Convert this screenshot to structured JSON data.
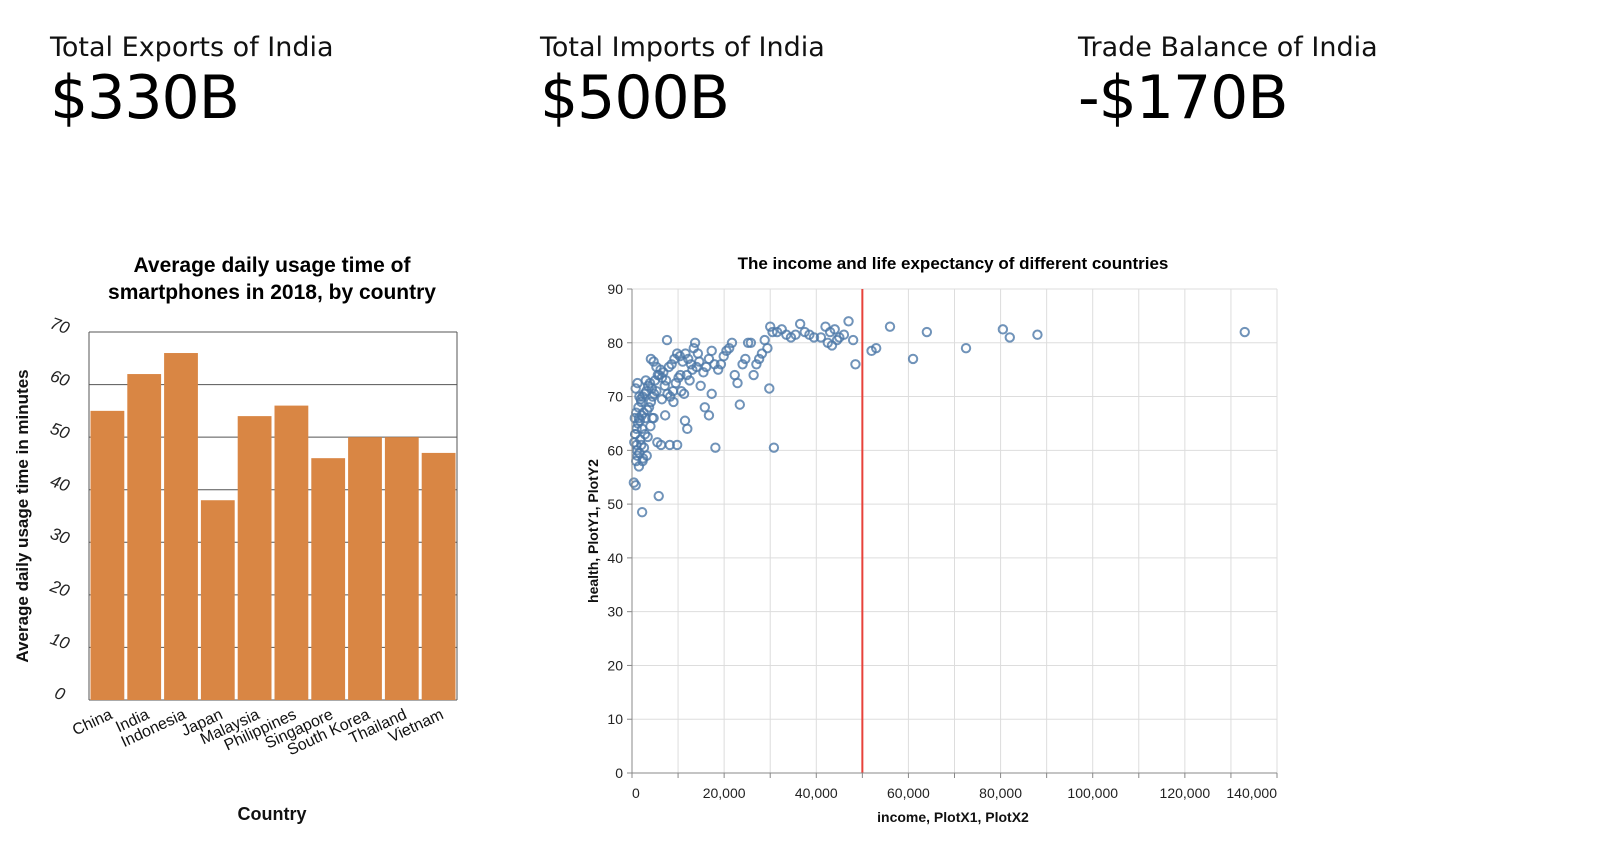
{
  "kpis": [
    {
      "label": "Total Exports of India",
      "value": "$330B"
    },
    {
      "label": "Total Imports of India",
      "value": "$500B"
    },
    {
      "label": "Trade Balance of India",
      "value": "-$170B"
    }
  ],
  "colors": {
    "bar": "#d98644",
    "point": "#4c78a8",
    "rule": "#e8423a"
  },
  "chart_data": [
    {
      "type": "bar",
      "title": [
        "Average daily usage time of",
        "smartphones in 2018, by country"
      ],
      "xlabel": "Country",
      "ylabel": "Average daily usage time in minutes",
      "categories": [
        "China",
        "India",
        "Indonesia",
        "Japan",
        "Malaysia",
        "Philippines",
        "Singapore",
        "South Korea",
        "Thailand",
        "Vietnam"
      ],
      "values": [
        55,
        62,
        66,
        38,
        54,
        56,
        46,
        50,
        50,
        47
      ],
      "ylim": [
        0,
        70
      ],
      "yticks": [
        "0",
        "10",
        "20",
        "30",
        "40",
        "50",
        "60",
        "70"
      ],
      "grid": true
    },
    {
      "type": "scatter",
      "title": "The income and life expectancy of different countries",
      "xlabel": "income, PlotX1, PlotX2",
      "ylabel": "health, PlotY1, PlotY2",
      "xlim": [
        0,
        140000
      ],
      "ylim": [
        0,
        90
      ],
      "xticks": [
        "0",
        "20,000",
        "40,000",
        "60,000",
        "80,000",
        "100,000",
        "120,000",
        "140,000"
      ],
      "yticks": [
        "0",
        "10",
        "20",
        "30",
        "40",
        "50",
        "60",
        "70",
        "80",
        "90"
      ],
      "rule_x": 50000,
      "grid": true,
      "points": [
        [
          400,
          54
        ],
        [
          800,
          53.5
        ],
        [
          1200,
          59
        ],
        [
          1600,
          59.5
        ],
        [
          2000,
          61
        ],
        [
          2400,
          58.5
        ],
        [
          1500,
          57
        ],
        [
          900,
          58
        ],
        [
          1100,
          60
        ],
        [
          1800,
          62
        ],
        [
          2600,
          60.5
        ],
        [
          3200,
          59
        ],
        [
          500,
          61.5
        ],
        [
          700,
          63
        ],
        [
          1000,
          64
        ],
        [
          1300,
          65
        ],
        [
          1700,
          65.5
        ],
        [
          2100,
          66.5
        ],
        [
          2500,
          67
        ],
        [
          2900,
          66
        ],
        [
          3300,
          67.5
        ],
        [
          3700,
          68
        ],
        [
          4100,
          69
        ],
        [
          4500,
          70
        ],
        [
          600,
          66
        ],
        [
          900,
          67
        ],
        [
          1400,
          68
        ],
        [
          1900,
          69.5
        ],
        [
          2300,
          70
        ],
        [
          2700,
          70.5
        ],
        [
          3100,
          71
        ],
        [
          3500,
          72
        ],
        [
          3900,
          72.5
        ],
        [
          4300,
          71.5
        ],
        [
          4800,
          70.5
        ],
        [
          5300,
          71
        ],
        [
          800,
          71.5
        ],
        [
          1200,
          72.5
        ],
        [
          1600,
          70
        ],
        [
          2200,
          64
        ],
        [
          2800,
          63
        ],
        [
          3400,
          62.5
        ],
        [
          4000,
          64.5
        ],
        [
          4700,
          66
        ],
        [
          5500,
          61.5
        ],
        [
          6300,
          61
        ],
        [
          7200,
          66.5
        ],
        [
          8200,
          61
        ],
        [
          2200,
          48.5
        ],
        [
          5800,
          51.5
        ],
        [
          9800,
          61
        ],
        [
          4400,
          66
        ],
        [
          5000,
          73
        ],
        [
          5600,
          74
        ],
        [
          6200,
          75
        ],
        [
          6800,
          74.5
        ],
        [
          7400,
          73
        ],
        [
          8000,
          75.5
        ],
        [
          8600,
          76
        ],
        [
          9200,
          77
        ],
        [
          9800,
          78
        ],
        [
          10400,
          77.5
        ],
        [
          11000,
          76.5
        ],
        [
          11600,
          78
        ],
        [
          12200,
          77
        ],
        [
          12800,
          76
        ],
        [
          13400,
          79
        ],
        [
          14000,
          75.5
        ],
        [
          14600,
          76.5
        ],
        [
          4100,
          77
        ],
        [
          4700,
          76.5
        ],
        [
          5300,
          75.5
        ],
        [
          5900,
          74
        ],
        [
          6500,
          73.5
        ],
        [
          7100,
          72
        ],
        [
          7700,
          70.5
        ],
        [
          8300,
          70
        ],
        [
          8900,
          71
        ],
        [
          9500,
          72.5
        ],
        [
          10100,
          73.5
        ],
        [
          10700,
          71
        ],
        [
          11300,
          70.5
        ],
        [
          11900,
          74
        ],
        [
          12500,
          73
        ],
        [
          13100,
          75
        ],
        [
          13700,
          80
        ],
        [
          14300,
          78
        ],
        [
          14900,
          72
        ],
        [
          15500,
          74.5
        ],
        [
          16100,
          75.5
        ],
        [
          16700,
          77
        ],
        [
          17300,
          78.5
        ],
        [
          17900,
          76
        ],
        [
          15800,
          68
        ],
        [
          16700,
          66.5
        ],
        [
          17300,
          70.5
        ],
        [
          18100,
          60.5
        ],
        [
          18700,
          75
        ],
        [
          19300,
          76
        ],
        [
          19900,
          77.5
        ],
        [
          20500,
          78.5
        ],
        [
          21100,
          79
        ],
        [
          21700,
          80
        ],
        [
          22300,
          74
        ],
        [
          22900,
          72.5
        ],
        [
          23400,
          68.5
        ],
        [
          24000,
          76
        ],
        [
          24600,
          77
        ],
        [
          25200,
          80
        ],
        [
          25800,
          80
        ],
        [
          26400,
          74
        ],
        [
          27000,
          76
        ],
        [
          27600,
          77
        ],
        [
          28200,
          78
        ],
        [
          28800,
          80.5
        ],
        [
          29400,
          79
        ],
        [
          30000,
          83
        ],
        [
          29800,
          71.5
        ],
        [
          30800,
          60.5
        ],
        [
          30500,
          82
        ],
        [
          31500,
          82
        ],
        [
          32500,
          82.5
        ],
        [
          33500,
          81.5
        ],
        [
          34500,
          81
        ],
        [
          35500,
          81.5
        ],
        [
          36500,
          83.5
        ],
        [
          37500,
          82
        ],
        [
          38500,
          81.5
        ],
        [
          39500,
          81
        ],
        [
          41000,
          81
        ],
        [
          42000,
          83
        ],
        [
          43000,
          82
        ],
        [
          43400,
          79.5
        ],
        [
          44000,
          82.5
        ],
        [
          45000,
          81
        ],
        [
          46000,
          81.5
        ],
        [
          47000,
          84
        ],
        [
          48000,
          80.5
        ],
        [
          48500,
          76
        ],
        [
          44500,
          80.5
        ],
        [
          42500,
          80
        ],
        [
          52000,
          78.5
        ],
        [
          53000,
          79
        ],
        [
          56000,
          83
        ],
        [
          61000,
          77
        ],
        [
          64000,
          82
        ],
        [
          72500,
          79
        ],
        [
          80500,
          82.5
        ],
        [
          82000,
          81
        ],
        [
          88000,
          81.5
        ],
        [
          133000,
          82
        ],
        [
          11500,
          65.5
        ],
        [
          12000,
          64
        ],
        [
          7600,
          80.5
        ],
        [
          10500,
          74
        ],
        [
          9000,
          69
        ],
        [
          6500,
          69.5
        ],
        [
          3000,
          73
        ],
        [
          2000,
          69
        ],
        [
          1500,
          66
        ],
        [
          1000,
          61
        ],
        [
          700,
          63
        ],
        [
          2300,
          58
        ]
      ]
    }
  ]
}
